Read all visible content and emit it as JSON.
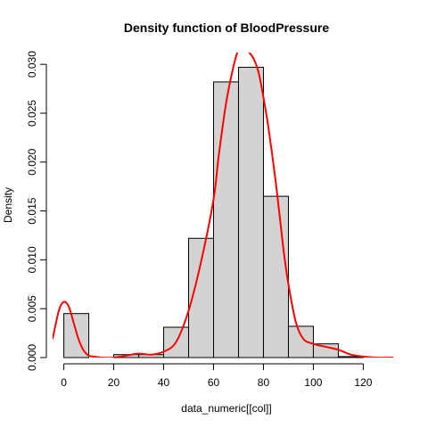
{
  "chart_data": {
    "type": "bar",
    "title": "Density function of BloodPressure",
    "xlabel": "data_numeric[[col]]",
    "ylabel": "Density",
    "xlim": [
      -4.5,
      132
    ],
    "ylim": [
      0,
      0.0312
    ],
    "x_ticks": [
      0,
      20,
      40,
      60,
      80,
      100,
      120
    ],
    "x_tick_labels": [
      "0",
      "20",
      "40",
      "60",
      "80",
      "100",
      "120"
    ],
    "y_ticks": [
      0,
      0.005,
      0.01,
      0.015,
      0.02,
      0.025,
      0.03
    ],
    "y_tick_labels": [
      "0.000",
      "0.005",
      "0.010",
      "0.015",
      "0.020",
      "0.025",
      "0.030"
    ],
    "histogram": {
      "bin_edges": [
        0,
        10,
        20,
        30,
        40,
        50,
        60,
        70,
        80,
        90,
        100,
        110,
        120
      ],
      "density": [
        0.0045,
        0.0,
        0.0003,
        0.0003,
        0.0031,
        0.0122,
        0.0282,
        0.0297,
        0.0165,
        0.0032,
        0.0014,
        0.0001
      ],
      "fill_color": "#d3d3d3",
      "border_color": "#000000"
    },
    "density_curve": {
      "color": "#ff0000",
      "x": [
        -4.5,
        -2,
        0,
        2,
        4,
        6,
        8,
        10,
        12,
        15,
        20,
        25,
        30,
        35,
        40,
        45,
        50,
        55,
        60,
        62,
        65,
        68,
        70,
        72,
        74,
        76,
        78,
        80,
        82,
        85,
        88,
        90,
        93,
        96,
        100,
        105,
        110,
        115,
        120,
        125,
        132
      ],
      "y": [
        0.0019,
        0.0048,
        0.0057,
        0.0052,
        0.0035,
        0.0018,
        0.0007,
        0.0002,
        0.0001,
        0.0,
        0.0,
        0.0002,
        0.0004,
        0.0003,
        0.0006,
        0.0016,
        0.0048,
        0.0098,
        0.0162,
        0.0205,
        0.026,
        0.0298,
        0.0315,
        0.0318,
        0.0313,
        0.0306,
        0.0292,
        0.0266,
        0.0235,
        0.0178,
        0.0111,
        0.0075,
        0.0036,
        0.0019,
        0.0014,
        0.0011,
        0.0008,
        0.0003,
        0.0001,
        0.0,
        0.0
      ]
    }
  }
}
